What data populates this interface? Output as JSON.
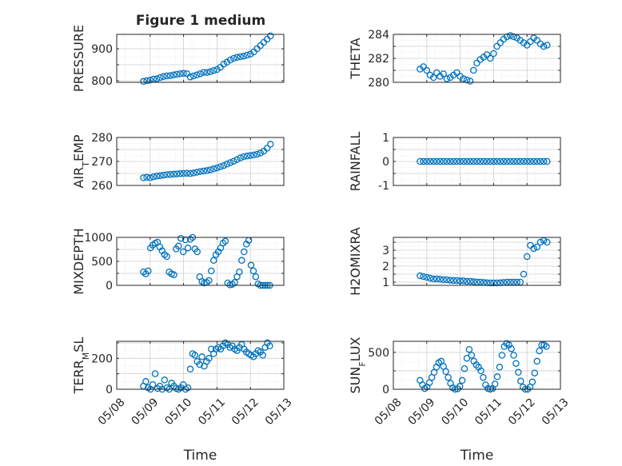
{
  "figure": {
    "title": "Figure 1 medium"
  },
  "chart_data": [
    {
      "type": "scatter",
      "ylabel": "PRESSURE",
      "xlabel": "",
      "ylim": [
        795,
        945
      ],
      "yticks": [
        800,
        850,
        900
      ],
      "yticklabels": [
        "800",
        "",
        "900"
      ],
      "xlim": [
        0,
        5
      ],
      "xticks": [
        0,
        1,
        2,
        3,
        4,
        5
      ],
      "xticklabels": [],
      "grid": true,
      "series": [
        {
          "color": "#0072BD",
          "x": [
            0.8,
            0.9,
            1.0,
            1.1,
            1.2,
            1.3,
            1.4,
            1.5,
            1.6,
            1.7,
            1.8,
            1.9,
            2.0,
            2.1,
            2.2,
            2.3,
            2.4,
            2.5,
            2.6,
            2.7,
            2.8,
            2.9,
            3.0,
            3.1,
            3.2,
            3.3,
            3.4,
            3.5,
            3.6,
            3.7,
            3.8,
            3.9,
            4.0,
            4.1,
            4.2,
            4.3,
            4.4,
            4.5,
            4.6
          ],
          "y": [
            798,
            800,
            802,
            805,
            806,
            810,
            813,
            815,
            816,
            818,
            820,
            822,
            823,
            822,
            812,
            815,
            818,
            822,
            826,
            826,
            828,
            832,
            835,
            842,
            852,
            858,
            865,
            870,
            873,
            875,
            877,
            880,
            883,
            890,
            900,
            910,
            920,
            930,
            940
          ]
        }
      ]
    },
    {
      "type": "scatter",
      "ylabel": "THETA",
      "xlabel": "",
      "ylim": [
        280,
        284
      ],
      "yticks": [
        280,
        281,
        282,
        283,
        284
      ],
      "yticklabels": [
        "280",
        "",
        "282",
        "",
        "284"
      ],
      "xlim": [
        0,
        5
      ],
      "xticks": [
        0,
        1,
        2,
        3,
        4,
        5
      ],
      "xticklabels": [],
      "grid": true,
      "series": [
        {
          "color": "#0072BD",
          "x": [
            0.8,
            0.9,
            1.0,
            1.1,
            1.2,
            1.3,
            1.4,
            1.5,
            1.6,
            1.7,
            1.8,
            1.9,
            2.0,
            2.1,
            2.2,
            2.3,
            2.4,
            2.5,
            2.6,
            2.7,
            2.8,
            2.9,
            3.0,
            3.1,
            3.2,
            3.3,
            3.4,
            3.5,
            3.6,
            3.7,
            3.8,
            3.9,
            4.0,
            4.1,
            4.2,
            4.3,
            4.4,
            4.5,
            4.6
          ],
          "y": [
            281.1,
            281.3,
            281.0,
            280.6,
            280.4,
            280.8,
            280.5,
            280.7,
            280.3,
            280.4,
            280.6,
            280.8,
            280.5,
            280.3,
            280.2,
            280.1,
            281.0,
            281.6,
            281.9,
            282.1,
            282.3,
            282.0,
            282.4,
            283.0,
            283.3,
            283.6,
            283.8,
            283.9,
            283.8,
            283.7,
            283.5,
            283.3,
            283.1,
            283.4,
            283.7,
            283.5,
            283.2,
            283.0,
            283.1
          ]
        }
      ]
    },
    {
      "type": "scatter",
      "ylabel": "AIR_TEMP",
      "xlabel": "",
      "ylim": [
        260,
        280
      ],
      "yticks": [
        260,
        265,
        270,
        275,
        280
      ],
      "yticklabels": [
        "260",
        "",
        "270",
        "",
        "280"
      ],
      "xlim": [
        0,
        5
      ],
      "xticks": [
        0,
        1,
        2,
        3,
        4,
        5
      ],
      "xticklabels": [],
      "grid": true,
      "series": [
        {
          "color": "#0072BD",
          "x": [
            0.8,
            0.9,
            1.0,
            1.1,
            1.2,
            1.3,
            1.4,
            1.5,
            1.6,
            1.7,
            1.8,
            1.9,
            2.0,
            2.1,
            2.2,
            2.3,
            2.4,
            2.5,
            2.6,
            2.7,
            2.8,
            2.9,
            3.0,
            3.1,
            3.2,
            3.3,
            3.4,
            3.5,
            3.6,
            3.7,
            3.8,
            3.9,
            4.0,
            4.1,
            4.2,
            4.3,
            4.4,
            4.5,
            4.6
          ],
          "y": [
            263.2,
            263.4,
            263.2,
            263.6,
            263.9,
            264.1,
            264.3,
            264.5,
            264.6,
            264.7,
            264.8,
            264.9,
            265.0,
            265.1,
            265.0,
            265.2,
            265.5,
            265.8,
            266.0,
            266.2,
            266.5,
            266.9,
            267.3,
            267.8,
            268.3,
            268.9,
            269.5,
            270.1,
            270.8,
            271.5,
            272.0,
            272.3,
            272.5,
            272.7,
            273.0,
            273.5,
            274.3,
            275.5,
            277.2
          ]
        }
      ]
    },
    {
      "type": "scatter",
      "ylabel": "RAINFALL",
      "xlabel": "",
      "ylim": [
        -1,
        1
      ],
      "yticks": [
        -1,
        -0.5,
        0,
        0.5,
        1
      ],
      "yticklabels": [
        "-1",
        "",
        "0",
        "",
        "1"
      ],
      "xlim": [
        0,
        5
      ],
      "xticks": [
        0,
        1,
        2,
        3,
        4,
        5
      ],
      "xticklabels": [],
      "grid": true,
      "series": [
        {
          "color": "#0072BD",
          "x": [
            0.8,
            0.9,
            1.0,
            1.1,
            1.2,
            1.3,
            1.4,
            1.5,
            1.6,
            1.7,
            1.8,
            1.9,
            2.0,
            2.1,
            2.2,
            2.3,
            2.4,
            2.5,
            2.6,
            2.7,
            2.8,
            2.9,
            3.0,
            3.1,
            3.2,
            3.3,
            3.4,
            3.5,
            3.6,
            3.7,
            3.8,
            3.9,
            4.0,
            4.1,
            4.2,
            4.3,
            4.4,
            4.5,
            4.6
          ],
          "y": [
            0,
            0,
            0,
            0,
            0,
            0,
            0,
            0,
            0,
            0,
            0,
            0,
            0,
            0,
            0,
            0,
            0,
            0,
            0,
            0,
            0,
            0,
            0,
            0,
            0,
            0,
            0,
            0,
            0,
            0,
            0,
            0,
            0,
            0,
            0,
            0,
            0,
            0,
            0
          ]
        }
      ]
    },
    {
      "type": "scatter",
      "ylabel": "MIXDEPTH",
      "xlabel": "",
      "ylim": [
        0,
        1000
      ],
      "yticks": [
        0,
        250,
        500,
        750,
        1000
      ],
      "yticklabels": [
        "0",
        "",
        "500",
        "",
        "1000"
      ],
      "xlim": [
        0,
        5
      ],
      "xticks": [
        0,
        1,
        2,
        3,
        4,
        5
      ],
      "xticklabels": [],
      "grid": true,
      "series": [
        {
          "color": "#0072BD",
          "x": [
            0.8,
            0.87,
            0.94,
            1.01,
            1.08,
            1.15,
            1.22,
            1.29,
            1.36,
            1.43,
            1.5,
            1.57,
            1.64,
            1.71,
            1.78,
            1.85,
            1.92,
            1.99,
            2.06,
            2.13,
            2.2,
            2.27,
            2.34,
            2.41,
            2.48,
            2.55,
            2.62,
            2.69,
            2.76,
            2.83,
            2.9,
            2.97,
            3.04,
            3.11,
            3.18,
            3.25,
            3.32,
            3.39,
            3.46,
            3.53,
            3.6,
            3.67,
            3.74,
            3.81,
            3.88,
            3.95,
            4.02,
            4.09,
            4.16,
            4.23,
            4.3,
            4.37,
            4.44,
            4.51,
            4.58
          ],
          "y": [
            280,
            240,
            300,
            780,
            840,
            880,
            900,
            800,
            720,
            640,
            600,
            280,
            240,
            220,
            760,
            820,
            980,
            700,
            950,
            780,
            960,
            1000,
            760,
            700,
            180,
            80,
            50,
            60,
            100,
            300,
            520,
            640,
            700,
            780,
            880,
            920,
            50,
            10,
            20,
            60,
            180,
            280,
            520,
            700,
            860,
            940,
            420,
            300,
            180,
            30,
            0,
            0,
            0,
            0,
            0
          ]
        }
      ]
    },
    {
      "type": "scatter",
      "ylabel": "H2OMIXRA",
      "xlabel": "",
      "ylim": [
        0.8,
        3.8
      ],
      "yticks": [
        1,
        1.5,
        2,
        2.5,
        3,
        3.5
      ],
      "yticklabels": [
        "1",
        "",
        "2",
        "",
        "3",
        ""
      ],
      "xlim": [
        0,
        5
      ],
      "xticks": [
        0,
        1,
        2,
        3,
        4,
        5
      ],
      "xticklabels": [],
      "grid": true,
      "series": [
        {
          "color": "#0072BD",
          "x": [
            0.8,
            0.9,
            1.0,
            1.1,
            1.2,
            1.3,
            1.4,
            1.5,
            1.6,
            1.7,
            1.8,
            1.9,
            2.0,
            2.1,
            2.2,
            2.3,
            2.4,
            2.5,
            2.6,
            2.7,
            2.8,
            2.9,
            3.0,
            3.1,
            3.2,
            3.3,
            3.4,
            3.5,
            3.6,
            3.7,
            3.8,
            3.9,
            4.0,
            4.1,
            4.2,
            4.3,
            4.4,
            4.5,
            4.6
          ],
          "y": [
            1.4,
            1.35,
            1.3,
            1.25,
            1.2,
            1.2,
            1.18,
            1.15,
            1.15,
            1.12,
            1.1,
            1.1,
            1.08,
            1.08,
            1.05,
            1.05,
            1.03,
            1.0,
            1.0,
            0.98,
            0.96,
            0.95,
            0.95,
            0.95,
            0.96,
            0.98,
            1.0,
            1.0,
            1.0,
            1.0,
            1.0,
            1.5,
            2.6,
            3.3,
            3.1,
            3.2,
            3.5,
            3.6,
            3.5
          ]
        }
      ]
    },
    {
      "type": "scatter",
      "ylabel": "TERR_MSL",
      "xlabel": "Time",
      "ylim": [
        0,
        310
      ],
      "yticks": [
        0,
        100,
        200,
        300
      ],
      "yticklabels": [
        "0",
        "",
        "200",
        ""
      ],
      "xlim": [
        0,
        5
      ],
      "xticks": [
        0,
        1,
        2,
        3,
        4,
        5
      ],
      "xticklabels": [
        "05/08",
        "05/09",
        "05/10",
        "05/11",
        "05/12",
        "05/13"
      ],
      "grid": true,
      "series": [
        {
          "color": "#0072BD",
          "x": [
            0.8,
            0.87,
            0.94,
            1.01,
            1.08,
            1.15,
            1.22,
            1.29,
            1.36,
            1.43,
            1.5,
            1.57,
            1.64,
            1.71,
            1.78,
            1.85,
            1.92,
            1.99,
            2.06,
            2.13,
            2.2,
            2.27,
            2.34,
            2.41,
            2.48,
            2.55,
            2.62,
            2.69,
            2.76,
            2.83,
            2.9,
            2.97,
            3.04,
            3.11,
            3.18,
            3.25,
            3.32,
            3.39,
            3.46,
            3.53,
            3.6,
            3.67,
            3.74,
            3.81,
            3.88,
            3.95,
            4.02,
            4.09,
            4.16,
            4.23,
            4.3,
            4.37,
            4.44,
            4.51,
            4.58
          ],
          "y": [
            20,
            50,
            10,
            0,
            30,
            100,
            5,
            20,
            0,
            60,
            10,
            0,
            40,
            20,
            5,
            0,
            10,
            30,
            0,
            10,
            130,
            230,
            220,
            180,
            160,
            210,
            150,
            180,
            200,
            260,
            230,
            260,
            270,
            260,
            280,
            300,
            290,
            270,
            280,
            260,
            250,
            270,
            290,
            260,
            240,
            230,
            220,
            210,
            230,
            250,
            240,
            220,
            270,
            300,
            280
          ]
        }
      ]
    },
    {
      "type": "scatter",
      "ylabel": "SUN_FLUX",
      "xlabel": "Time",
      "ylim": [
        0,
        650
      ],
      "yticks": [
        0,
        250,
        500
      ],
      "yticklabels": [
        "0",
        "",
        "500"
      ],
      "xlim": [
        0,
        5
      ],
      "xticks": [
        0,
        1,
        2,
        3,
        4,
        5
      ],
      "xticklabels": [
        "05/08",
        "05/09",
        "05/10",
        "05/11",
        "05/12",
        "05/13"
      ],
      "grid": true,
      "series": [
        {
          "color": "#0072BD",
          "x": [
            0.8,
            0.87,
            0.94,
            1.01,
            1.08,
            1.15,
            1.22,
            1.29,
            1.36,
            1.43,
            1.5,
            1.57,
            1.64,
            1.71,
            1.78,
            1.85,
            1.92,
            1.99,
            2.06,
            2.13,
            2.2,
            2.27,
            2.34,
            2.41,
            2.48,
            2.55,
            2.62,
            2.69,
            2.76,
            2.83,
            2.9,
            2.97,
            3.04,
            3.11,
            3.18,
            3.25,
            3.32,
            3.39,
            3.46,
            3.53,
            3.6,
            3.67,
            3.74,
            3.81,
            3.88,
            3.95,
            4.02,
            4.09,
            4.16,
            4.23,
            4.3,
            4.37,
            4.44,
            4.51,
            4.58
          ],
          "y": [
            120,
            60,
            10,
            30,
            90,
            160,
            230,
            300,
            360,
            380,
            310,
            240,
            160,
            80,
            20,
            0,
            5,
            40,
            120,
            280,
            420,
            540,
            460,
            380,
            330,
            300,
            250,
            160,
            60,
            10,
            0,
            10,
            70,
            170,
            300,
            460,
            580,
            620,
            600,
            550,
            460,
            350,
            230,
            110,
            30,
            0,
            0,
            30,
            100,
            220,
            380,
            520,
            600,
            600,
            580
          ]
        }
      ]
    }
  ]
}
